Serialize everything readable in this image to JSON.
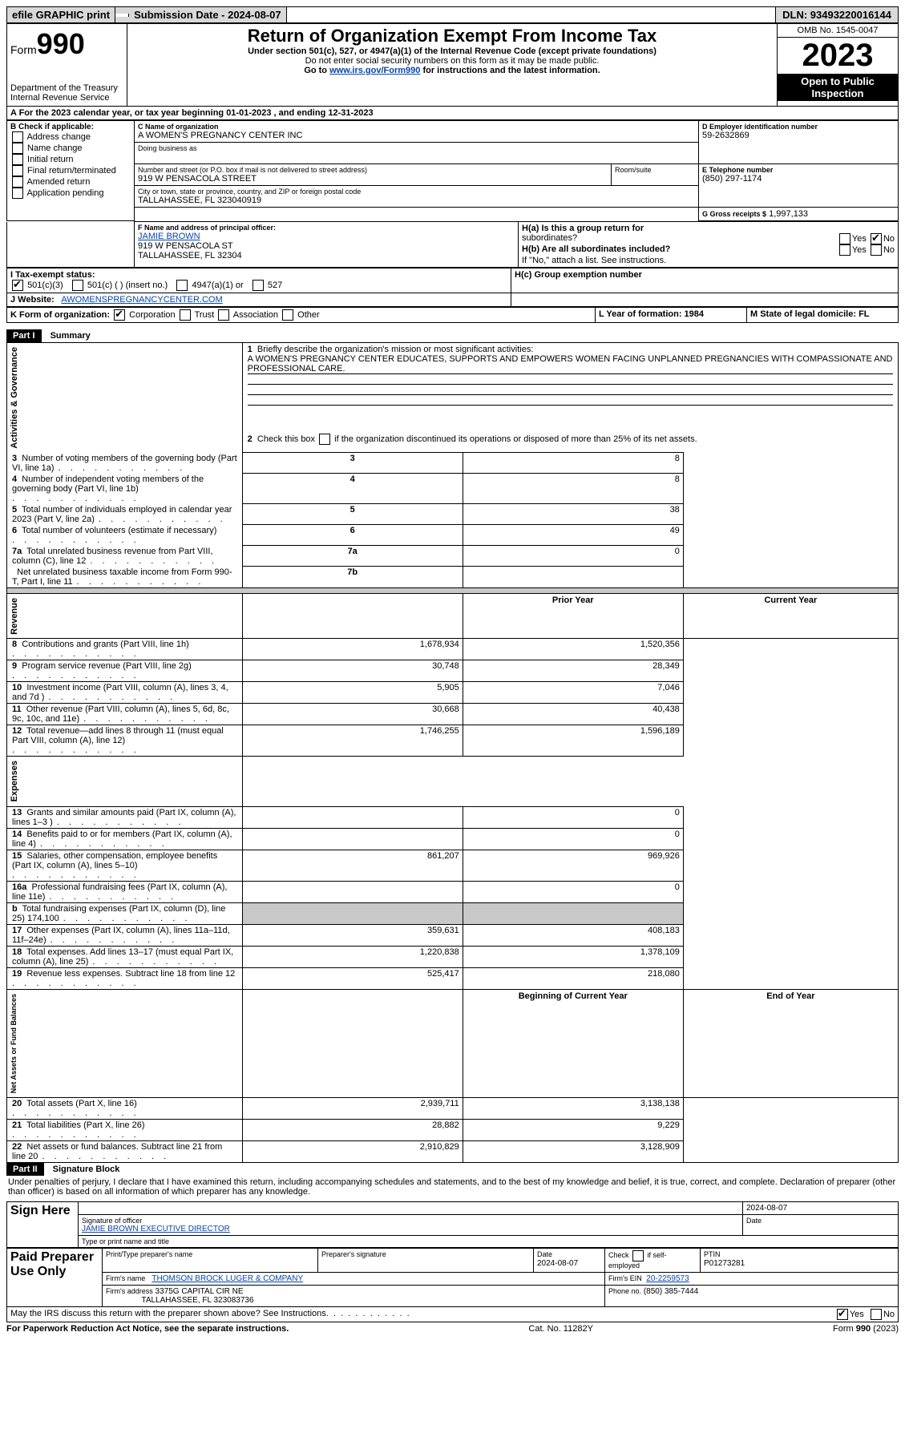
{
  "topbar": {
    "efile": "efile GRAPHIC print",
    "blank": " ",
    "subm_lbl": "Submission Date - 2024-08-07",
    "dln": "DLN: 93493220016144"
  },
  "header": {
    "form": "Form",
    "num": "990",
    "dept": "Department of the Treasury",
    "dept2": "Internal Revenue Service",
    "title": "Return of Organization Exempt From Income Tax",
    "sub1": "Under section 501(c), 527, or 4947(a)(1) of the Internal Revenue Code (except private foundations)",
    "sub2": "Do not enter social security numbers on this form as it may be made public.",
    "sub3_pre": "Go to ",
    "sub3_link": "www.irs.gov/Form990",
    "sub3_post": " for instructions and the latest information.",
    "omb": "OMB No. 1545-0047",
    "year": "2023",
    "open": "Open to Public Inspection"
  },
  "period": {
    "line": "A For the 2023 calendar year, or tax year beginning 01-01-2023   , and ending 12-31-2023"
  },
  "boxB": {
    "title": "B Check if applicable:",
    "items": [
      "Address change",
      "Name change",
      "Initial return",
      "Final return/terminated",
      "Amended return",
      "Application pending"
    ]
  },
  "boxC": {
    "name_lbl": "C Name of organization",
    "name": "A WOMEN'S PREGNANCY CENTER INC",
    "dba_lbl": "Doing business as",
    "addr_lbl": "Number and street (or P.O. box if mail is not delivered to street address)",
    "room_lbl": "Room/suite",
    "addr": "919 W PENSACOLA STREET",
    "city_lbl": "City or town, state or province, country, and ZIP or foreign postal code",
    "city": "TALLAHASSEE, FL  323040919"
  },
  "boxD": {
    "lbl": "D Employer identification number",
    "val": "59-2632869"
  },
  "boxE": {
    "lbl": "E Telephone number",
    "val": "(850) 297-1174"
  },
  "boxG": {
    "lbl": "G Gross receipts $",
    "val": "1,997,133"
  },
  "boxF": {
    "lbl": "F  Name and address of principal officer:",
    "l1": "JAMIE BROWN",
    "l2": "919 W PENSACOLA ST",
    "l3": "TALLAHASSEE, FL  32304"
  },
  "boxH": {
    "a": "H(a)  Is this a group return for",
    "a2": "subordinates?",
    "b": "H(b)  Are all subordinates included?",
    "note": "If \"No,\" attach a list. See instructions.",
    "c": "H(c)  Group exemption number",
    "yes": "Yes",
    "no": "No"
  },
  "boxI": {
    "lbl": "I   Tax-exempt status:",
    "o1": "501(c)(3)",
    "o2": "501(c) (  ) (insert no.)",
    "o3": "4947(a)(1) or",
    "o4": "527"
  },
  "boxJ": {
    "lbl": "J   Website:",
    "val": "AWOMENSPREGNANCYCENTER.COM"
  },
  "boxK": {
    "lbl": "K Form of organization:",
    "o1": "Corporation",
    "o2": "Trust",
    "o3": "Association",
    "o4": "Other"
  },
  "boxL": {
    "lbl": "L Year of formation: 1984"
  },
  "boxM": {
    "lbl": "M State of legal domicile: FL"
  },
  "part1": {
    "tag": "Part I",
    "title": "Summary"
  },
  "labels": {
    "ag": "Activities & Governance",
    "rev": "Revenue",
    "exp": "Expenses",
    "net": "Net Assets or Fund Balances"
  },
  "l1": {
    "t": "Briefly describe the organization's mission or most significant activities:",
    "v": "A WOMEN'S PREGNANCY CENTER EDUCATES, SUPPORTS AND EMPOWERS WOMEN FACING UNPLANNED PREGNANCIES WITH COMPASSIONATE AND PROFESSIONAL CARE."
  },
  "l2": "Check this box       if the organization discontinued its operations or disposed of more than 25% of its net assets.",
  "rows_ag": [
    {
      "n": "3",
      "t": "Number of voting members of the governing body (Part VI, line 1a)",
      "k": "3",
      "v": "8"
    },
    {
      "n": "4",
      "t": "Number of independent voting members of the governing body (Part VI, line 1b)",
      "k": "4",
      "v": "8"
    },
    {
      "n": "5",
      "t": "Total number of individuals employed in calendar year 2023 (Part V, line 2a)",
      "k": "5",
      "v": "38"
    },
    {
      "n": "6",
      "t": "Total number of volunteers (estimate if necessary)",
      "k": "6",
      "v": "49"
    },
    {
      "n": "7a",
      "t": "Total unrelated business revenue from Part VIII, column (C), line 12",
      "k": "7a",
      "v": "0"
    },
    {
      "n": "",
      "t": "Net unrelated business taxable income from Form 990-T, Part I, line 11",
      "k": "7b",
      "v": ""
    }
  ],
  "hdr_prior": "Prior Year",
  "hdr_curr": "Current Year",
  "rows_rev": [
    {
      "n": "8",
      "t": "Contributions and grants (Part VIII, line 1h)",
      "p": "1,678,934",
      "c": "1,520,356"
    },
    {
      "n": "9",
      "t": "Program service revenue (Part VIII, line 2g)",
      "p": "30,748",
      "c": "28,349"
    },
    {
      "n": "10",
      "t": "Investment income (Part VIII, column (A), lines 3, 4, and 7d )",
      "p": "5,905",
      "c": "7,046"
    },
    {
      "n": "11",
      "t": "Other revenue (Part VIII, column (A), lines 5, 6d, 8c, 9c, 10c, and 11e)",
      "p": "30,668",
      "c": "40,438"
    },
    {
      "n": "12",
      "t": "Total revenue—add lines 8 through 11 (must equal Part VIII, column (A), line 12)",
      "p": "1,746,255",
      "c": "1,596,189"
    }
  ],
  "rows_exp": [
    {
      "n": "13",
      "t": "Grants and similar amounts paid (Part IX, column (A), lines 1–3 )",
      "p": "",
      "c": "0"
    },
    {
      "n": "14",
      "t": "Benefits paid to or for members (Part IX, column (A), line 4)",
      "p": "",
      "c": "0"
    },
    {
      "n": "15",
      "t": "Salaries, other compensation, employee benefits (Part IX, column (A), lines 5–10)",
      "p": "861,207",
      "c": "969,926"
    },
    {
      "n": "16a",
      "t": "Professional fundraising fees (Part IX, column (A), line 11e)",
      "p": "",
      "c": "0"
    },
    {
      "n": "b",
      "t": "Total fundraising expenses (Part IX, column (D), line 25) 174,100",
      "p": "",
      "c": "",
      "shade": true
    },
    {
      "n": "17",
      "t": "Other expenses (Part IX, column (A), lines 11a–11d, 11f–24e)",
      "p": "359,631",
      "c": "408,183"
    },
    {
      "n": "18",
      "t": "Total expenses. Add lines 13–17 (must equal Part IX, column (A), line 25)",
      "p": "1,220,838",
      "c": "1,378,109"
    },
    {
      "n": "19",
      "t": "Revenue less expenses. Subtract line 18 from line 12",
      "p": "525,417",
      "c": "218,080"
    }
  ],
  "hdr_boc": "Beginning of Current Year",
  "hdr_eoy": "End of Year",
  "rows_net": [
    {
      "n": "20",
      "t": "Total assets (Part X, line 16)",
      "p": "2,939,711",
      "c": "3,138,138"
    },
    {
      "n": "21",
      "t": "Total liabilities (Part X, line 26)",
      "p": "28,882",
      "c": "9,229"
    },
    {
      "n": "22",
      "t": "Net assets or fund balances. Subtract line 21 from line 20",
      "p": "2,910,829",
      "c": "3,128,909"
    }
  ],
  "part2": {
    "tag": "Part II",
    "title": "Signature Block"
  },
  "perjury": "Under penalties of perjury, I declare that I have examined this return, including accompanying schedules and statements, and to the best of my knowledge and belief, it is true, correct, and complete. Declaration of preparer (other than officer) is based on all information of which preparer has any knowledge.",
  "sign": {
    "here": "Sign Here",
    "date": "2024-08-07",
    "sig_lbl": "Signature of officer",
    "date_lbl": "Date",
    "name": "JAMIE BROWN  EXECUTIVE DIRECTOR",
    "name_lbl": "Type or print name and title"
  },
  "paid": {
    "tag": "Paid Preparer Use Only",
    "c1": "Print/Type preparer's name",
    "c2": "Preparer's signature",
    "c3": "Date",
    "c3v": "2024-08-07",
    "c4": "Check        if self-employed",
    "c5": "PTIN",
    "c5v": "P01273281",
    "firm_lbl": "Firm's name",
    "firm": "THOMSON BROCK LUGER & COMPANY",
    "ein_lbl": "Firm's EIN",
    "ein": "20-2259573",
    "addr_lbl": "Firm's address",
    "addr1": "3375G CAPITAL CIR NE",
    "addr2": "TALLAHASSEE, FL  323083736",
    "ph_lbl": "Phone no.",
    "ph": "(850) 385-7444"
  },
  "irs_discuss": "May the IRS discuss this return with the preparer shown above? See Instructions.",
  "footer": {
    "l": "For Paperwork Reduction Act Notice, see the separate instructions.",
    "m": "Cat. No. 11282Y",
    "r": "Form 990 (2023)"
  },
  "yes": "Yes",
  "no": "No"
}
